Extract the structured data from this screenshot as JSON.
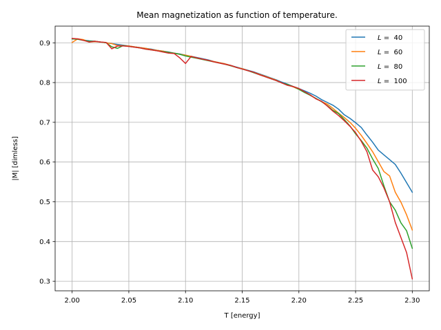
{
  "chart_data": {
    "type": "line",
    "title": "Mean magnetization as function of temperature.",
    "xlabel": "T [energy]",
    "ylabel": "|M| [dimless]",
    "xlim": [
      1.985,
      2.315
    ],
    "ylim": [
      0.276,
      0.942
    ],
    "xticks": [
      2.0,
      2.05,
      2.1,
      2.15,
      2.2,
      2.25,
      2.3
    ],
    "xtick_labels": [
      "2.00",
      "2.05",
      "2.10",
      "2.15",
      "2.20",
      "2.25",
      "2.30"
    ],
    "yticks": [
      0.3,
      0.4,
      0.5,
      0.6,
      0.7,
      0.8,
      0.9
    ],
    "ytick_labels": [
      "0.3",
      "0.4",
      "0.5",
      "0.6",
      "0.7",
      "0.8",
      "0.9"
    ],
    "grid": true,
    "legend_position": "top-right",
    "x": [
      2.0,
      2.005,
      2.01,
      2.015,
      2.02,
      2.025,
      2.03,
      2.035,
      2.04,
      2.045,
      2.05,
      2.055,
      2.06,
      2.065,
      2.07,
      2.075,
      2.08,
      2.085,
      2.09,
      2.095,
      2.1,
      2.105,
      2.11,
      2.115,
      2.12,
      2.125,
      2.13,
      2.135,
      2.14,
      2.145,
      2.15,
      2.155,
      2.16,
      2.165,
      2.17,
      2.175,
      2.18,
      2.185,
      2.19,
      2.195,
      2.2,
      2.205,
      2.21,
      2.215,
      2.22,
      2.225,
      2.23,
      2.235,
      2.24,
      2.245,
      2.25,
      2.255,
      2.26,
      2.265,
      2.27,
      2.275,
      2.28,
      2.285,
      2.29,
      2.295,
      2.3
    ],
    "series": [
      {
        "name": "L =  40",
        "name_prefix": "L",
        "name_suffix": " =  40",
        "color": "#1f77b4",
        "values": [
          0.91,
          0.909,
          0.907,
          0.905,
          0.904,
          0.902,
          0.9,
          0.898,
          0.896,
          0.894,
          0.892,
          0.89,
          0.888,
          0.886,
          0.884,
          0.881,
          0.879,
          0.877,
          0.874,
          0.872,
          0.869,
          0.866,
          0.863,
          0.86,
          0.857,
          0.853,
          0.85,
          0.847,
          0.843,
          0.839,
          0.835,
          0.831,
          0.827,
          0.822,
          0.817,
          0.812,
          0.807,
          0.801,
          0.796,
          0.79,
          0.785,
          0.779,
          0.773,
          0.766,
          0.757,
          0.75,
          0.743,
          0.733,
          0.719,
          0.71,
          0.699,
          0.687,
          0.668,
          0.65,
          0.63,
          0.618,
          0.606,
          0.594,
          0.572,
          0.548,
          0.524
        ]
      },
      {
        "name": "L =  60",
        "name_prefix": "L",
        "name_suffix": " =  60",
        "color": "#ff7f0e",
        "values": [
          0.901,
          0.91,
          0.908,
          0.902,
          0.903,
          0.902,
          0.9,
          0.898,
          0.893,
          0.893,
          0.892,
          0.89,
          0.888,
          0.886,
          0.883,
          0.881,
          0.879,
          0.876,
          0.874,
          0.871,
          0.869,
          0.866,
          0.862,
          0.859,
          0.856,
          0.853,
          0.85,
          0.847,
          0.843,
          0.838,
          0.835,
          0.83,
          0.826,
          0.821,
          0.816,
          0.811,
          0.806,
          0.799,
          0.794,
          0.789,
          0.783,
          0.776,
          0.768,
          0.76,
          0.752,
          0.746,
          0.735,
          0.723,
          0.712,
          0.7,
          0.685,
          0.667,
          0.647,
          0.626,
          0.601,
          0.576,
          0.565,
          0.524,
          0.499,
          0.467,
          0.429
        ]
      },
      {
        "name": "L =  80",
        "name_prefix": "L",
        "name_suffix": " =  80",
        "color": "#2ca02c",
        "values": [
          0.91,
          0.909,
          0.906,
          0.904,
          0.904,
          0.902,
          0.9,
          0.89,
          0.886,
          0.893,
          0.891,
          0.889,
          0.887,
          0.884,
          0.882,
          0.88,
          0.878,
          0.876,
          0.874,
          0.871,
          0.867,
          0.864,
          0.861,
          0.858,
          0.855,
          0.852,
          0.849,
          0.846,
          0.842,
          0.838,
          0.834,
          0.83,
          0.825,
          0.82,
          0.815,
          0.81,
          0.805,
          0.799,
          0.795,
          0.79,
          0.783,
          0.775,
          0.768,
          0.76,
          0.752,
          0.742,
          0.73,
          0.722,
          0.707,
          0.691,
          0.671,
          0.654,
          0.635,
          0.608,
          0.584,
          0.54,
          0.5,
          0.479,
          0.447,
          0.427,
          0.383
        ]
      },
      {
        "name": "L =  100",
        "name_prefix": "L",
        "name_suffix": " =  100",
        "color": "#d62728",
        "values": [
          0.911,
          0.91,
          0.906,
          0.902,
          0.904,
          0.902,
          0.901,
          0.885,
          0.892,
          0.892,
          0.891,
          0.889,
          0.887,
          0.884,
          0.882,
          0.88,
          0.877,
          0.874,
          0.873,
          0.862,
          0.848,
          0.866,
          0.862,
          0.859,
          0.856,
          0.852,
          0.849,
          0.846,
          0.843,
          0.838,
          0.834,
          0.83,
          0.826,
          0.82,
          0.815,
          0.81,
          0.805,
          0.799,
          0.793,
          0.79,
          0.785,
          0.777,
          0.769,
          0.759,
          0.753,
          0.741,
          0.728,
          0.717,
          0.704,
          0.69,
          0.674,
          0.652,
          0.626,
          0.58,
          0.563,
          0.535,
          0.5,
          0.448,
          0.41,
          0.372,
          0.306
        ]
      }
    ]
  }
}
